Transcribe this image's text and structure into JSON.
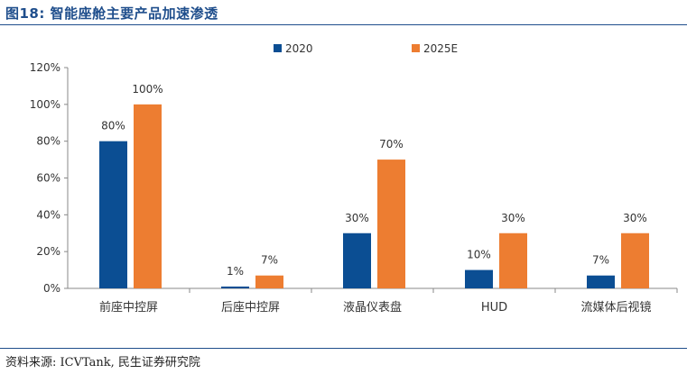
{
  "figure": {
    "title": "图18:  智能座舱主要产品加速渗透",
    "source": "资料来源: ICVTank, 民生证券研究院"
  },
  "chart_data": {
    "type": "bar",
    "categories": [
      "前座中控屏",
      "后座中控屏",
      "液晶仪表盘",
      "HUD",
      "流媒体后视镜"
    ],
    "series": [
      {
        "name": "2020",
        "color": "#0b4e93",
        "values": [
          80,
          1,
          30,
          10,
          7
        ],
        "labels": [
          "80%",
          "1%",
          "30%",
          "10%",
          "7%"
        ]
      },
      {
        "name": "2025E",
        "color": "#ed7d31",
        "values": [
          100,
          7,
          70,
          30,
          30
        ],
        "labels": [
          "100%",
          "7%",
          "70%",
          "30%",
          "30%"
        ]
      }
    ],
    "yticks": [
      "0%",
      "20%",
      "40%",
      "60%",
      "80%",
      "100%",
      "120%"
    ],
    "ylim": [
      0,
      120
    ],
    "ystep": 20,
    "grid": false,
    "legend": "top-center"
  }
}
